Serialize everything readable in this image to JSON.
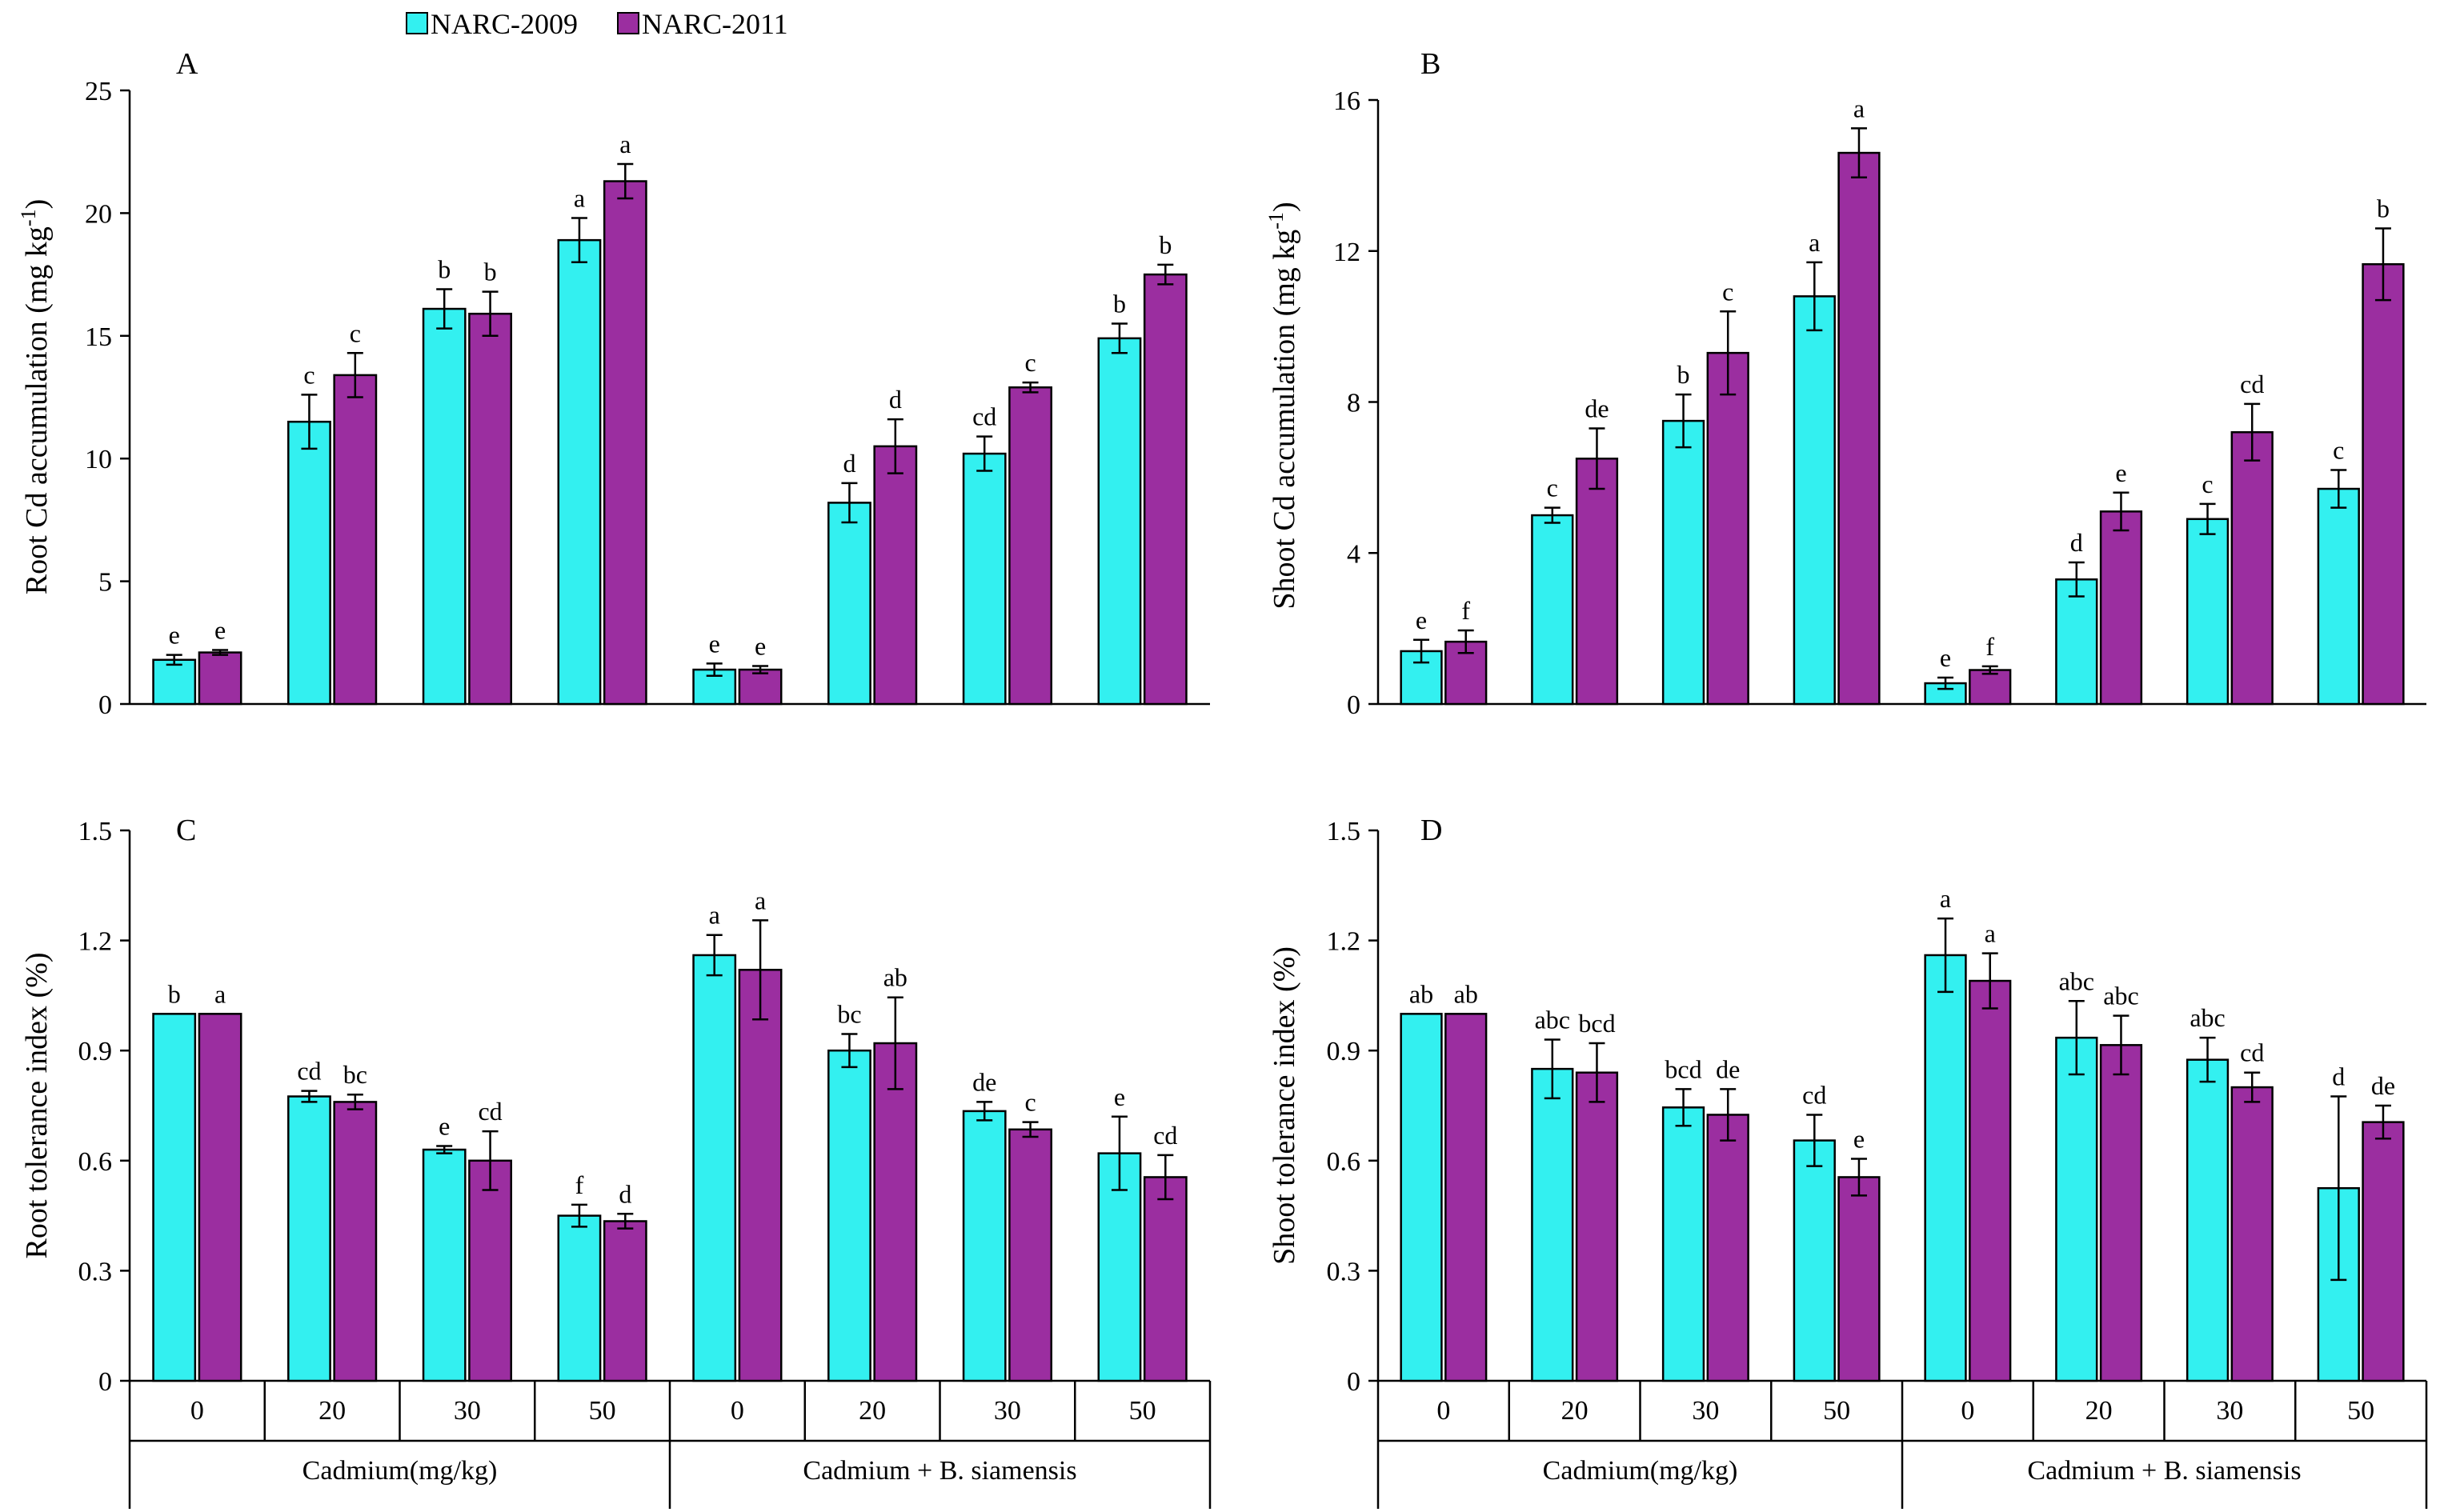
{
  "legend": {
    "items": [
      {
        "name": "NARC-2009",
        "color": "#33f0f0"
      },
      {
        "name": "NARC-2011",
        "color": "#9b2ea0"
      }
    ]
  },
  "x_axis": {
    "categories": [
      "0",
      "20",
      "30",
      "50",
      "0",
      "20",
      "30",
      "50"
    ],
    "groups": [
      "Cadmium(mg/kg)",
      "Cadmium + B. siamensis"
    ]
  },
  "chart_data": [
    {
      "type": "bar",
      "panel": "A",
      "ylabel": "Root Cd accumulation (mg kg-1)",
      "ylabel_main": "Root Cd accumulation (mg kg",
      "ylabel_sup": "-1",
      "ylabel_end": ")",
      "ylim": [
        0,
        25
      ],
      "yticks": [
        0,
        5,
        10,
        15,
        20,
        25
      ],
      "ytick_labels": [
        "0",
        "5",
        "10",
        "15",
        "20",
        "25"
      ],
      "series": [
        {
          "name": "NARC-2009",
          "values": [
            1.8,
            11.5,
            16.1,
            18.9,
            1.4,
            8.2,
            10.2,
            14.9
          ],
          "errors": [
            0.2,
            1.1,
            0.8,
            0.9,
            0.25,
            0.8,
            0.7,
            0.6
          ],
          "letters": [
            "e",
            "c",
            "b",
            "a",
            "e",
            "d",
            "cd",
            "b"
          ]
        },
        {
          "name": "NARC-2011",
          "values": [
            2.1,
            13.4,
            15.9,
            21.3,
            1.4,
            10.5,
            12.9,
            17.5
          ],
          "errors": [
            0.1,
            0.9,
            0.9,
            0.7,
            0.15,
            1.1,
            0.2,
            0.4
          ],
          "letters": [
            "e",
            "c",
            "b",
            "a",
            "e",
            "d",
            "c",
            "b"
          ]
        }
      ]
    },
    {
      "type": "bar",
      "panel": "B",
      "ylabel": "Shoot Cd accumulation (mg kg-1)",
      "ylabel_main": "Shoot Cd accumulation (mg kg",
      "ylabel_sup": "-1",
      "ylabel_end": ")",
      "ylim": [
        0,
        16
      ],
      "yticks": [
        0,
        4,
        8,
        12,
        16
      ],
      "ytick_labels": [
        "0",
        "4",
        "8",
        "12",
        "16"
      ],
      "series": [
        {
          "name": "NARC-2009",
          "values": [
            1.4,
            5.0,
            7.5,
            10.8,
            0.55,
            3.3,
            4.9,
            5.7
          ],
          "errors": [
            0.3,
            0.2,
            0.7,
            0.9,
            0.15,
            0.45,
            0.4,
            0.5
          ],
          "letters": [
            "e",
            "c",
            "b",
            "a",
            "e",
            "d",
            "c",
            "c"
          ]
        },
        {
          "name": "NARC-2011",
          "values": [
            1.65,
            6.5,
            9.3,
            14.6,
            0.9,
            5.1,
            7.2,
            11.65
          ],
          "errors": [
            0.3,
            0.8,
            1.1,
            0.65,
            0.1,
            0.5,
            0.75,
            0.95
          ],
          "letters": [
            "f",
            "de",
            "c",
            "a",
            "f",
            "e",
            "cd",
            "b"
          ]
        }
      ]
    },
    {
      "type": "bar",
      "panel": "C",
      "ylabel": "Root tolerance index (%)",
      "ylim": [
        0,
        1.5
      ],
      "yticks": [
        0,
        0.3,
        0.6,
        0.9,
        1.2,
        1.5
      ],
      "ytick_labels": [
        "0",
        "0.3",
        "0.6",
        "0.9",
        "1.2",
        "1.5"
      ],
      "series": [
        {
          "name": "NARC-2009",
          "values": [
            1.0,
            0.775,
            0.63,
            0.45,
            1.16,
            0.9,
            0.735,
            0.62
          ],
          "errors": [
            0.0,
            0.015,
            0.01,
            0.03,
            0.055,
            0.045,
            0.025,
            0.1
          ],
          "letters": [
            "b",
            "cd",
            "e",
            "f",
            "a",
            "bc",
            "de",
            "e"
          ]
        },
        {
          "name": "NARC-2011",
          "values": [
            1.0,
            0.76,
            0.6,
            0.435,
            1.12,
            0.92,
            0.685,
            0.555
          ],
          "errors": [
            0.0,
            0.02,
            0.08,
            0.02,
            0.135,
            0.125,
            0.02,
            0.06
          ],
          "letters": [
            "a",
            "bc",
            "cd",
            "d",
            "a",
            "ab",
            "c",
            "cd"
          ]
        }
      ]
    },
    {
      "type": "bar",
      "panel": "D",
      "ylabel": "Shoot tolerance index (%)",
      "ylim": [
        0,
        1.5
      ],
      "yticks": [
        0,
        0.3,
        0.6,
        0.9,
        1.2,
        1.5
      ],
      "ytick_labels": [
        "0",
        "0.3",
        "0.6",
        "0.9",
        "1.2",
        "1.5"
      ],
      "series": [
        {
          "name": "NARC-2009",
          "values": [
            1.0,
            0.85,
            0.745,
            0.655,
            1.16,
            0.935,
            0.875,
            0.525
          ],
          "errors": [
            0.0,
            0.08,
            0.05,
            0.07,
            0.1,
            0.1,
            0.06,
            0.25
          ],
          "letters": [
            "ab",
            "abc",
            "bcd",
            "cd",
            "a",
            "abc",
            "abc",
            "d"
          ]
        },
        {
          "name": "NARC-2011",
          "values": [
            1.0,
            0.84,
            0.725,
            0.555,
            1.09,
            0.915,
            0.8,
            0.705
          ],
          "errors": [
            0.0,
            0.08,
            0.07,
            0.05,
            0.075,
            0.08,
            0.04,
            0.045
          ],
          "letters": [
            "ab",
            "bcd",
            "de",
            "e",
            "a",
            "abc",
            "cd",
            "de"
          ]
        }
      ]
    }
  ]
}
